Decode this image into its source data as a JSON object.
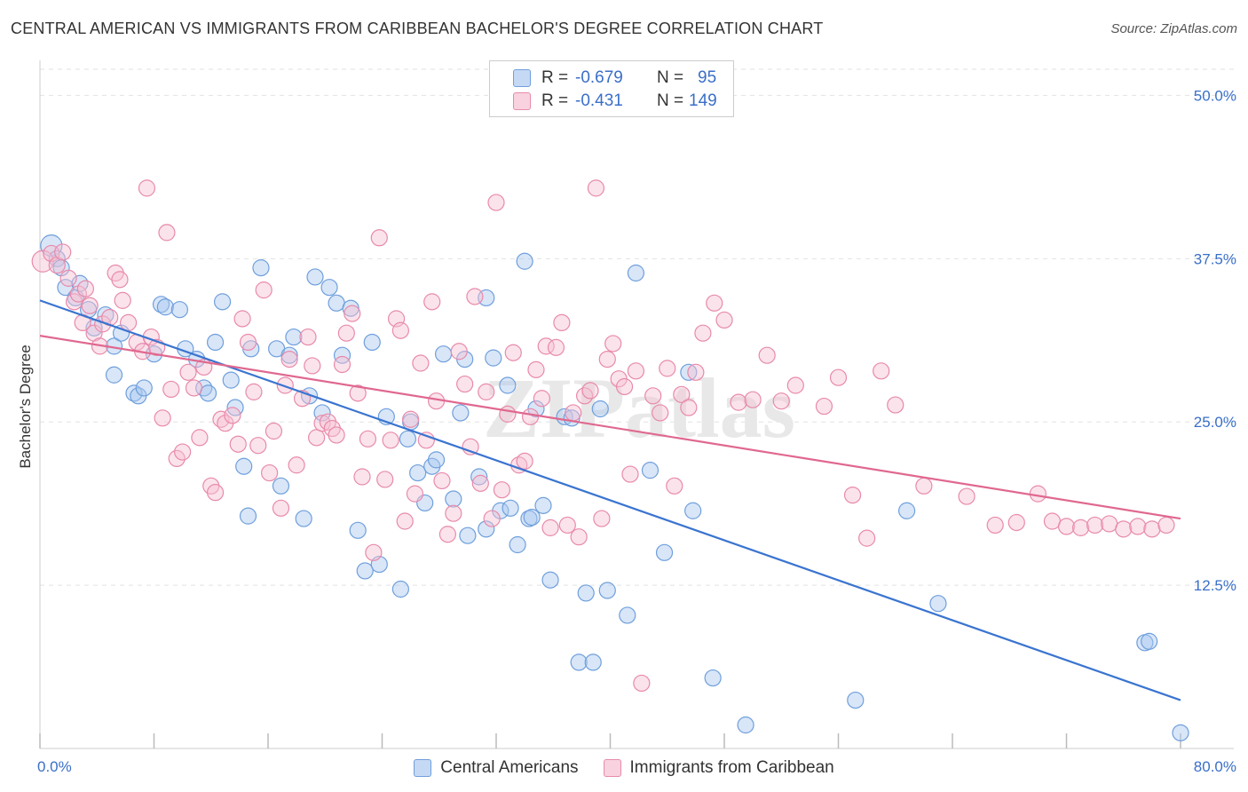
{
  "title": "CENTRAL AMERICAN VS IMMIGRANTS FROM CARIBBEAN BACHELOR'S DEGREE CORRELATION CHART",
  "source": "Source: ZipAtlas.com",
  "watermark": "ZIPatlas",
  "colors": {
    "blue_fill": "#a9c8f0",
    "blue_stroke": "#6f9fdc",
    "blue_line": "#3a74d0",
    "pink_fill": "#f6c2d3",
    "pink_stroke": "#e88aab",
    "pink_line": "#e0688f",
    "axis_text": "#3a6fc8",
    "grid": "#e2e2e2"
  },
  "legend_box": {
    "rows": [
      {
        "r_label": "R =",
        "r_value": "-0.679",
        "n_label": "N =",
        "n_value": "95"
      },
      {
        "r_label": "R =",
        "r_value": "-0.431",
        "n_label": "N =",
        "n_value": "149"
      }
    ]
  },
  "chart_data": {
    "type": "scatter",
    "ylabel": "Bachelor's Degree",
    "xlabel": "",
    "xlim": [
      0,
      80
    ],
    "ylim": [
      0,
      52
    ],
    "x_tick_labels": [
      "0.0%",
      "80.0%"
    ],
    "y_ticks": [
      12.5,
      25.0,
      37.5,
      50.0
    ],
    "y_tick_labels": [
      "12.5%",
      "25.0%",
      "37.5%",
      "50.0%"
    ],
    "grid": true,
    "legend_position": "bottom-center",
    "series": [
      {
        "name": "Central Americans",
        "color": "blue",
        "trendline": {
          "x": [
            0,
            80
          ],
          "y": [
            34.3,
            3.7
          ]
        },
        "points": [
          [
            0.8,
            38.5
          ],
          [
            1.2,
            37.5
          ],
          [
            1.5,
            36.8
          ],
          [
            1.8,
            35.3
          ],
          [
            2.5,
            34.5
          ],
          [
            2.8,
            35.6
          ],
          [
            3.4,
            33.6
          ],
          [
            3.8,
            32.2
          ],
          [
            4.6,
            33.2
          ],
          [
            5.2,
            30.8
          ],
          [
            5.7,
            31.8
          ],
          [
            5.2,
            28.6
          ],
          [
            6.6,
            27.2
          ],
          [
            6.9,
            27.0
          ],
          [
            7.3,
            27.6
          ],
          [
            8.0,
            30.2
          ],
          [
            8.5,
            34.0
          ],
          [
            8.8,
            33.8
          ],
          [
            9.8,
            33.6
          ],
          [
            10.2,
            30.6
          ],
          [
            11.0,
            29.8
          ],
          [
            11.5,
            27.6
          ],
          [
            11.8,
            27.2
          ],
          [
            12.3,
            31.1
          ],
          [
            12.8,
            34.2
          ],
          [
            13.4,
            28.2
          ],
          [
            13.7,
            26.1
          ],
          [
            14.8,
            30.6
          ],
          [
            15.5,
            36.8
          ],
          [
            14.3,
            21.6
          ],
          [
            14.6,
            17.8
          ],
          [
            16.6,
            30.6
          ],
          [
            16.9,
            20.1
          ],
          [
            17.5,
            30.1
          ],
          [
            17.8,
            31.5
          ],
          [
            18.5,
            17.6
          ],
          [
            18.9,
            27.0
          ],
          [
            19.3,
            36.1
          ],
          [
            19.8,
            25.7
          ],
          [
            20.3,
            35.3
          ],
          [
            20.8,
            34.1
          ],
          [
            21.2,
            30.1
          ],
          [
            21.8,
            33.7
          ],
          [
            22.3,
            16.7
          ],
          [
            22.8,
            13.6
          ],
          [
            23.3,
            31.1
          ],
          [
            23.8,
            14.1
          ],
          [
            24.3,
            25.4
          ],
          [
            25.3,
            12.2
          ],
          [
            25.8,
            23.7
          ],
          [
            26.0,
            25.0
          ],
          [
            26.5,
            21.1
          ],
          [
            27.0,
            18.8
          ],
          [
            27.5,
            21.6
          ],
          [
            27.8,
            22.1
          ],
          [
            28.3,
            30.2
          ],
          [
            29.0,
            19.1
          ],
          [
            29.8,
            29.8
          ],
          [
            29.5,
            25.7
          ],
          [
            30.0,
            16.3
          ],
          [
            30.8,
            20.8
          ],
          [
            31.3,
            16.8
          ],
          [
            31.3,
            34.5
          ],
          [
            31.8,
            29.9
          ],
          [
            32.3,
            18.2
          ],
          [
            32.8,
            27.8
          ],
          [
            33.0,
            18.4
          ],
          [
            33.5,
            15.6
          ],
          [
            34.0,
            37.3
          ],
          [
            34.3,
            17.6
          ],
          [
            34.5,
            17.7
          ],
          [
            34.8,
            26.0
          ],
          [
            35.3,
            18.6
          ],
          [
            35.8,
            12.9
          ],
          [
            36.8,
            25.4
          ],
          [
            37.3,
            25.3
          ],
          [
            37.8,
            6.6
          ],
          [
            38.3,
            11.9
          ],
          [
            38.8,
            6.6
          ],
          [
            39.3,
            26.0
          ],
          [
            39.8,
            12.1
          ],
          [
            41.2,
            10.2
          ],
          [
            41.8,
            36.4
          ],
          [
            42.8,
            21.3
          ],
          [
            43.8,
            15.0
          ],
          [
            45.5,
            28.8
          ],
          [
            45.8,
            18.2
          ],
          [
            47.2,
            5.4
          ],
          [
            49.5,
            1.8
          ],
          [
            57.2,
            3.7
          ],
          [
            60.8,
            18.2
          ],
          [
            63.0,
            11.1
          ],
          [
            77.5,
            8.1
          ],
          [
            77.8,
            8.2
          ],
          [
            80.0,
            1.2
          ]
        ]
      },
      {
        "name": "Immigrants from Caribbean",
        "color": "pink",
        "trendline": {
          "x": [
            0,
            80
          ],
          "y": [
            31.6,
            17.6
          ]
        },
        "points": [
          [
            0.2,
            37.3
          ],
          [
            0.8,
            37.9
          ],
          [
            1.2,
            37.0
          ],
          [
            1.6,
            38.0
          ],
          [
            2.0,
            36.0
          ],
          [
            2.4,
            34.2
          ],
          [
            2.7,
            34.8
          ],
          [
            3.0,
            32.6
          ],
          [
            3.2,
            35.2
          ],
          [
            3.5,
            33.9
          ],
          [
            3.8,
            31.8
          ],
          [
            4.2,
            30.8
          ],
          [
            4.4,
            32.5
          ],
          [
            4.9,
            33.0
          ],
          [
            5.3,
            36.4
          ],
          [
            5.6,
            35.9
          ],
          [
            5.8,
            34.3
          ],
          [
            6.2,
            32.6
          ],
          [
            6.8,
            31.1
          ],
          [
            7.2,
            30.4
          ],
          [
            7.5,
            42.9
          ],
          [
            7.8,
            31.5
          ],
          [
            8.2,
            30.7
          ],
          [
            8.6,
            25.3
          ],
          [
            8.9,
            39.5
          ],
          [
            9.2,
            27.5
          ],
          [
            9.6,
            22.2
          ],
          [
            10.0,
            22.7
          ],
          [
            10.4,
            28.8
          ],
          [
            10.8,
            27.6
          ],
          [
            11.2,
            23.8
          ],
          [
            11.5,
            29.2
          ],
          [
            12.0,
            20.1
          ],
          [
            12.3,
            19.6
          ],
          [
            12.7,
            25.2
          ],
          [
            13.0,
            24.9
          ],
          [
            13.5,
            25.5
          ],
          [
            13.9,
            23.3
          ],
          [
            14.2,
            32.9
          ],
          [
            14.6,
            31.1
          ],
          [
            15.0,
            27.3
          ],
          [
            15.3,
            23.2
          ],
          [
            15.7,
            35.1
          ],
          [
            16.1,
            21.1
          ],
          [
            16.4,
            24.3
          ],
          [
            16.9,
            18.4
          ],
          [
            17.2,
            27.8
          ],
          [
            17.5,
            29.8
          ],
          [
            18.0,
            21.7
          ],
          [
            18.4,
            26.8
          ],
          [
            18.8,
            31.5
          ],
          [
            19.1,
            29.3
          ],
          [
            19.4,
            23.8
          ],
          [
            19.8,
            24.9
          ],
          [
            20.2,
            25.0
          ],
          [
            20.5,
            24.5
          ],
          [
            20.8,
            24.0
          ],
          [
            21.2,
            29.4
          ],
          [
            21.5,
            31.8
          ],
          [
            21.9,
            33.3
          ],
          [
            22.3,
            27.2
          ],
          [
            22.6,
            20.8
          ],
          [
            23.0,
            23.7
          ],
          [
            23.4,
            15.0
          ],
          [
            23.8,
            39.1
          ],
          [
            24.2,
            20.6
          ],
          [
            24.6,
            23.6
          ],
          [
            25.0,
            32.9
          ],
          [
            25.3,
            32.0
          ],
          [
            25.6,
            17.4
          ],
          [
            26.0,
            25.2
          ],
          [
            26.3,
            19.5
          ],
          [
            26.7,
            29.5
          ],
          [
            27.1,
            23.6
          ],
          [
            27.5,
            34.2
          ],
          [
            27.8,
            26.6
          ],
          [
            28.2,
            20.5
          ],
          [
            28.6,
            16.4
          ],
          [
            29.0,
            18.0
          ],
          [
            29.4,
            30.4
          ],
          [
            29.8,
            27.9
          ],
          [
            30.2,
            23.1
          ],
          [
            30.5,
            34.6
          ],
          [
            30.9,
            20.3
          ],
          [
            31.3,
            27.3
          ],
          [
            31.7,
            17.6
          ],
          [
            32.0,
            41.8
          ],
          [
            32.4,
            19.8
          ],
          [
            32.8,
            25.6
          ],
          [
            33.2,
            30.3
          ],
          [
            33.6,
            21.7
          ],
          [
            34.0,
            22.0
          ],
          [
            34.4,
            25.4
          ],
          [
            34.8,
            29.0
          ],
          [
            35.2,
            26.8
          ],
          [
            35.5,
            30.8
          ],
          [
            35.8,
            16.9
          ],
          [
            36.2,
            30.7
          ],
          [
            36.6,
            32.6
          ],
          [
            37.0,
            17.1
          ],
          [
            37.4,
            25.7
          ],
          [
            37.8,
            16.2
          ],
          [
            38.2,
            27.0
          ],
          [
            38.6,
            27.4
          ],
          [
            39.0,
            42.9
          ],
          [
            39.4,
            17.6
          ],
          [
            39.8,
            29.8
          ],
          [
            40.2,
            31.0
          ],
          [
            40.6,
            28.3
          ],
          [
            41.0,
            27.7
          ],
          [
            41.4,
            21.0
          ],
          [
            41.8,
            28.9
          ],
          [
            42.2,
            5.0
          ],
          [
            43.0,
            27.0
          ],
          [
            43.5,
            25.7
          ],
          [
            44.0,
            29.1
          ],
          [
            44.5,
            20.1
          ],
          [
            45.0,
            27.1
          ],
          [
            45.5,
            26.1
          ],
          [
            46.0,
            28.8
          ],
          [
            46.5,
            31.8
          ],
          [
            47.3,
            34.1
          ],
          [
            48.0,
            32.8
          ],
          [
            49.0,
            26.5
          ],
          [
            50.0,
            26.7
          ],
          [
            51.0,
            30.1
          ],
          [
            52.0,
            26.6
          ],
          [
            53.0,
            27.8
          ],
          [
            55.0,
            26.2
          ],
          [
            56.0,
            28.4
          ],
          [
            57.0,
            19.4
          ],
          [
            58.0,
            16.1
          ],
          [
            59.0,
            28.9
          ],
          [
            60.0,
            26.3
          ],
          [
            62.0,
            20.1
          ],
          [
            65.0,
            19.3
          ],
          [
            67.0,
            17.1
          ],
          [
            68.5,
            17.3
          ],
          [
            70.0,
            19.5
          ],
          [
            71.0,
            17.4
          ],
          [
            72.0,
            17.0
          ],
          [
            73.0,
            16.9
          ],
          [
            74.0,
            17.1
          ],
          [
            75.0,
            17.2
          ],
          [
            76.0,
            16.8
          ],
          [
            77.0,
            17.0
          ],
          [
            78.0,
            16.8
          ],
          [
            79.0,
            17.1
          ]
        ]
      }
    ]
  },
  "bottom_legend": [
    {
      "label": "Central Americans"
    },
    {
      "label": "Immigrants from Caribbean"
    }
  ]
}
